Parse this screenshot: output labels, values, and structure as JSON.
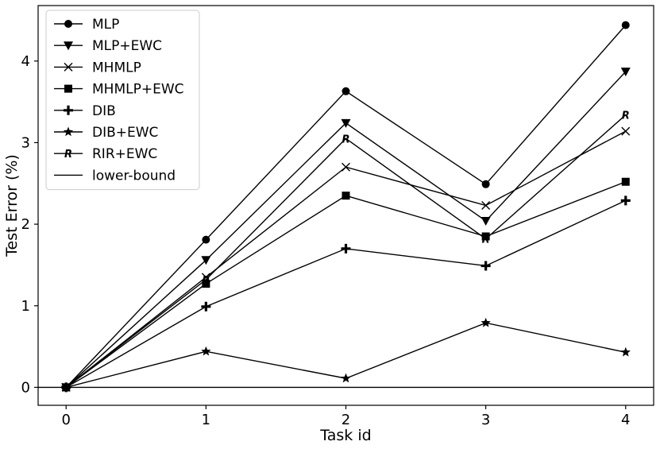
{
  "chart_data": {
    "type": "line",
    "title": "",
    "xlabel": "Task id",
    "ylabel": "Test Error (%)",
    "x": [
      0,
      1,
      2,
      3,
      4
    ],
    "xlim": [
      -0.2,
      4.2
    ],
    "ylim": [
      -0.22,
      4.68
    ],
    "xticks": [
      "0",
      "1",
      "2",
      "3",
      "4"
    ],
    "yticks": [
      "0",
      "1",
      "2",
      "3",
      "4"
    ],
    "grid": false,
    "legend_position": "top-left",
    "series": [
      {
        "name": "MLP",
        "marker": "circle",
        "values": [
          0.0,
          1.81,
          3.63,
          2.49,
          4.44
        ]
      },
      {
        "name": "MLP+EWC",
        "marker": "triangle-down",
        "values": [
          0.0,
          1.56,
          3.24,
          2.04,
          3.87
        ]
      },
      {
        "name": "MHMLP",
        "marker": "x",
        "values": [
          0.0,
          1.35,
          2.7,
          2.23,
          3.14
        ]
      },
      {
        "name": "MHMLP+EWC",
        "marker": "square",
        "values": [
          0.0,
          1.27,
          2.35,
          1.85,
          2.52
        ]
      },
      {
        "name": "DIB",
        "marker": "plus",
        "values": [
          0.0,
          0.99,
          1.7,
          1.49,
          2.29
        ]
      },
      {
        "name": "DIB+EWC",
        "marker": "star",
        "values": [
          0.0,
          0.44,
          0.11,
          0.79,
          0.43
        ]
      },
      {
        "name": "RIR+EWC",
        "marker": "letter-R",
        "values": [
          0.0,
          1.32,
          3.05,
          1.82,
          3.34
        ]
      },
      {
        "name": "lower-bound",
        "marker": "none",
        "values": [
          0.0,
          0.0,
          0.0,
          0.0,
          0.0
        ]
      }
    ],
    "marker_letter": "R"
  }
}
